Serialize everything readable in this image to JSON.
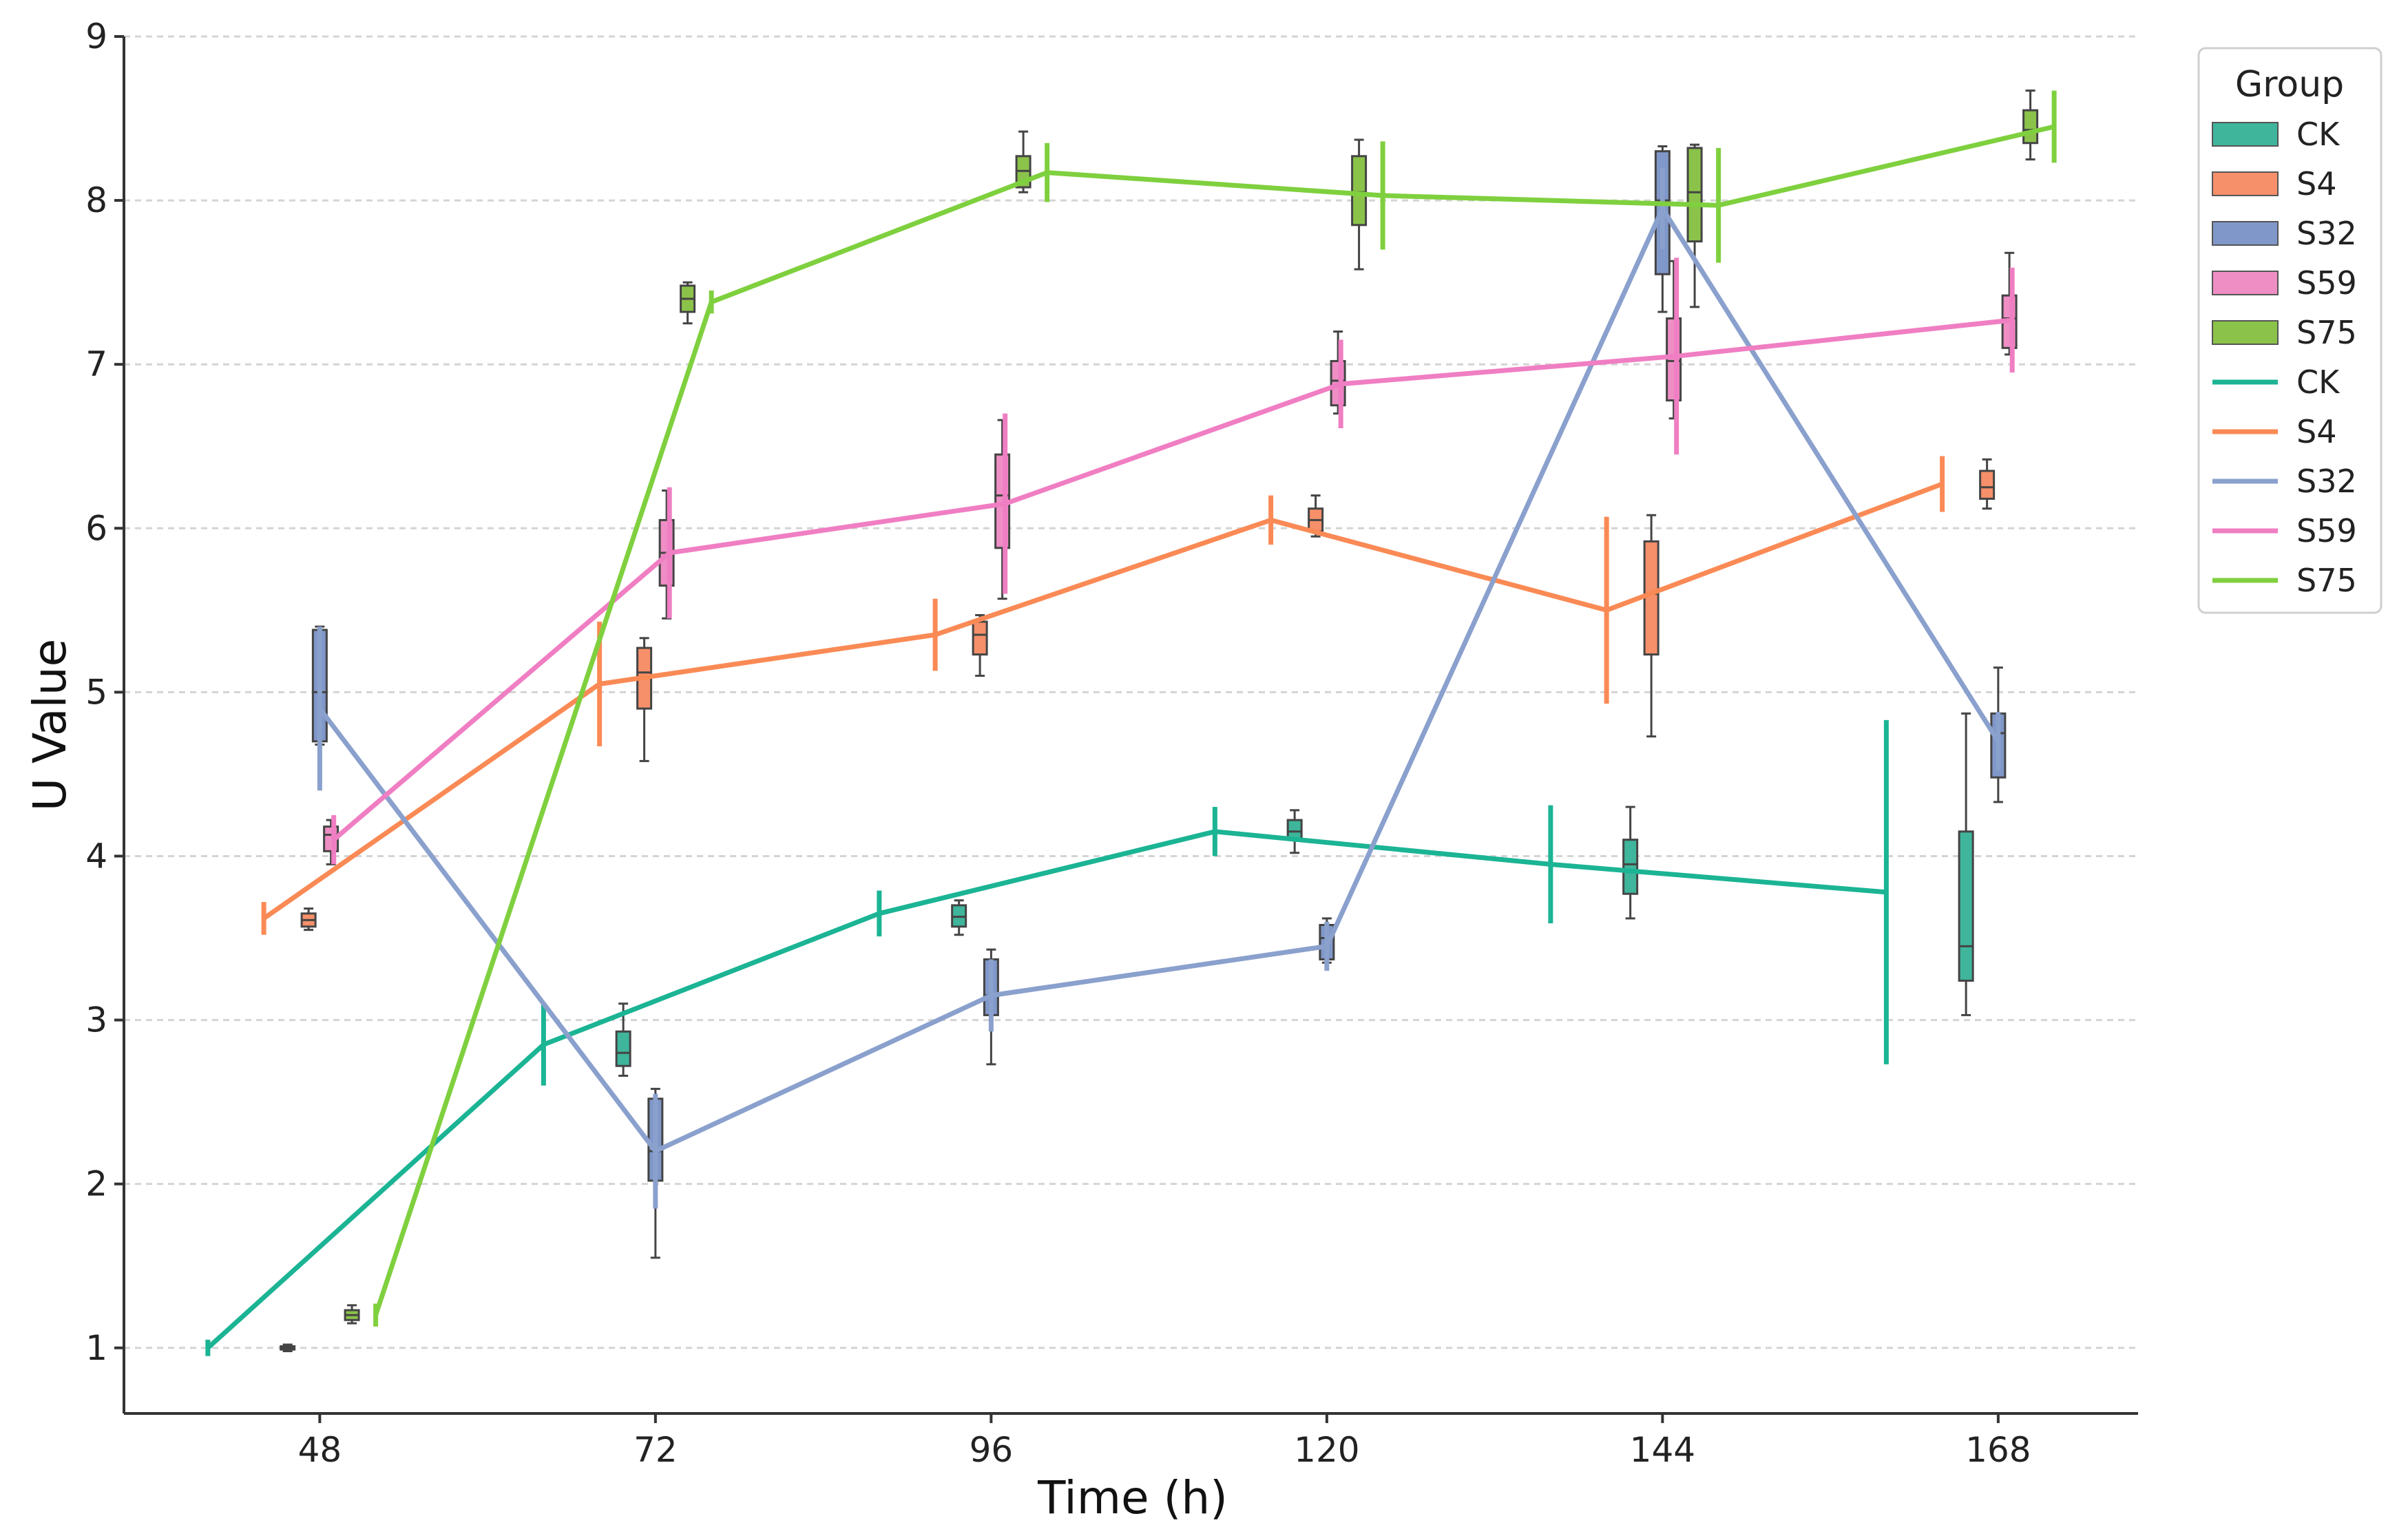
{
  "chart_data": {
    "type": "line",
    "subtype": "line-with-errorbars-and-boxplots",
    "title": "",
    "xlabel": "Time (h)",
    "ylabel": "U Value",
    "xlim": [
      34,
      178
    ],
    "ylim": [
      0.6,
      9.0
    ],
    "x_ticks": [
      48,
      72,
      96,
      120,
      144,
      168
    ],
    "y_ticks": [
      1,
      2,
      3,
      4,
      5,
      6,
      7,
      8,
      9
    ],
    "grid": "horizontal-dashed",
    "legend": {
      "title": "Group",
      "position": "top-right-outside",
      "box_entries": [
        "CK",
        "S4",
        "S32",
        "S59",
        "S75"
      ],
      "line_entries": [
        "CK",
        "S4",
        "S32",
        "S59",
        "S75"
      ]
    },
    "series": [
      {
        "name": "CK",
        "color": "#1bb494",
        "box_color": "#3fb59b",
        "line": [
          {
            "x": 40.0,
            "y": 1.0,
            "err": 0.05
          },
          {
            "x": 64.0,
            "y": 2.85,
            "err": 0.25
          },
          {
            "x": 88.0,
            "y": 3.65,
            "err": 0.14
          },
          {
            "x": 112.0,
            "y": 4.15,
            "err": 0.15
          },
          {
            "x": 136.0,
            "y": 3.95,
            "err": 0.36
          },
          {
            "x": 160.0,
            "y": 3.78,
            "err": 1.05
          }
        ],
        "boxes": [
          {
            "x": 45.7,
            "whislo": 0.98,
            "q1": 0.99,
            "med": 1.0,
            "q3": 1.01,
            "whishi": 1.02
          },
          {
            "x": 69.7,
            "whislo": 2.66,
            "q1": 2.72,
            "med": 2.8,
            "q3": 2.93,
            "whishi": 3.1
          },
          {
            "x": 93.7,
            "whislo": 3.52,
            "q1": 3.57,
            "med": 3.63,
            "q3": 3.7,
            "whishi": 3.73
          },
          {
            "x": 117.7,
            "whislo": 4.02,
            "q1": 4.1,
            "med": 4.15,
            "q3": 4.22,
            "whishi": 4.28
          },
          {
            "x": 141.7,
            "whislo": 3.62,
            "q1": 3.77,
            "med": 3.95,
            "q3": 4.1,
            "whishi": 4.3
          },
          {
            "x": 165.7,
            "whislo": 3.03,
            "q1": 3.24,
            "med": 3.45,
            "q3": 4.15,
            "whishi": 4.87
          }
        ]
      },
      {
        "name": "S4",
        "color": "#fa8a55",
        "box_color": "#f6906a",
        "line": [
          {
            "x": 44.0,
            "y": 3.62,
            "err": 0.1
          },
          {
            "x": 68.0,
            "y": 5.05,
            "err": 0.38
          },
          {
            "x": 92.0,
            "y": 5.35,
            "err": 0.22
          },
          {
            "x": 116.0,
            "y": 6.05,
            "err": 0.15
          },
          {
            "x": 140.0,
            "y": 5.5,
            "err": 0.57
          },
          {
            "x": 164.0,
            "y": 6.27,
            "err": 0.17
          }
        ],
        "boxes": [
          {
            "x": 47.2,
            "whislo": 3.55,
            "q1": 3.57,
            "med": 3.61,
            "q3": 3.65,
            "whishi": 3.68
          },
          {
            "x": 71.2,
            "whislo": 4.58,
            "q1": 4.9,
            "med": 5.12,
            "q3": 5.27,
            "whishi": 5.33
          },
          {
            "x": 95.2,
            "whislo": 5.1,
            "q1": 5.23,
            "med": 5.35,
            "q3": 5.43,
            "whishi": 5.47
          },
          {
            "x": 119.2,
            "whislo": 5.95,
            "q1": 5.98,
            "med": 6.05,
            "q3": 6.12,
            "whishi": 6.2
          },
          {
            "x": 143.2,
            "whislo": 4.73,
            "q1": 5.23,
            "med": 5.6,
            "q3": 5.92,
            "whishi": 6.08
          },
          {
            "x": 167.2,
            "whislo": 6.12,
            "q1": 6.18,
            "med": 6.25,
            "q3": 6.35,
            "whishi": 6.42
          }
        ]
      },
      {
        "name": "S32",
        "color": "#8aa0cd",
        "box_color": "#8097c9",
        "line": [
          {
            "x": 48.0,
            "y": 4.9,
            "err": 0.5
          },
          {
            "x": 72.0,
            "y": 2.2,
            "err": 0.35
          },
          {
            "x": 96.0,
            "y": 3.15,
            "err": 0.22
          },
          {
            "x": 120.0,
            "y": 3.45,
            "err": 0.15
          },
          {
            "x": 144.0,
            "y": 7.95,
            "err": 0.25
          },
          {
            "x": 168.0,
            "y": 4.7,
            "err": 0.18
          }
        ],
        "boxes": [
          {
            "x": 48.0,
            "whislo": 4.68,
            "q1": 4.7,
            "med": 5.0,
            "q3": 5.38,
            "whishi": 5.4
          },
          {
            "x": 72.0,
            "whislo": 1.55,
            "q1": 2.02,
            "med": 2.2,
            "q3": 2.52,
            "whishi": 2.58
          },
          {
            "x": 96.0,
            "whislo": 2.73,
            "q1": 3.03,
            "med": 3.15,
            "q3": 3.37,
            "whishi": 3.43
          },
          {
            "x": 120.0,
            "whislo": 3.35,
            "q1": 3.37,
            "med": 3.5,
            "q3": 3.58,
            "whishi": 3.62
          },
          {
            "x": 144.0,
            "whislo": 7.32,
            "q1": 7.55,
            "med": 8.0,
            "q3": 8.3,
            "whishi": 8.33
          },
          {
            "x": 168.0,
            "whislo": 4.33,
            "q1": 4.48,
            "med": 4.75,
            "q3": 4.87,
            "whishi": 5.15
          }
        ]
      },
      {
        "name": "S59",
        "color": "#f07ec3",
        "box_color": "#ee8ec5",
        "line": [
          {
            "x": 49.0,
            "y": 4.1,
            "err": 0.15
          },
          {
            "x": 73.0,
            "y": 5.85,
            "err": 0.4
          },
          {
            "x": 97.0,
            "y": 6.15,
            "err": 0.55
          },
          {
            "x": 121.0,
            "y": 6.88,
            "err": 0.27
          },
          {
            "x": 145.0,
            "y": 7.05,
            "err": 0.6
          },
          {
            "x": 169.0,
            "y": 7.27,
            "err": 0.32
          }
        ],
        "boxes": [
          {
            "x": 48.8,
            "whislo": 3.95,
            "q1": 4.03,
            "med": 4.13,
            "q3": 4.18,
            "whishi": 4.22
          },
          {
            "x": 72.8,
            "whislo": 5.45,
            "q1": 5.65,
            "med": 5.85,
            "q3": 6.05,
            "whishi": 6.23
          },
          {
            "x": 96.8,
            "whislo": 5.57,
            "q1": 5.88,
            "med": 6.2,
            "q3": 6.45,
            "whishi": 6.66
          },
          {
            "x": 120.8,
            "whislo": 6.7,
            "q1": 6.75,
            "med": 6.9,
            "q3": 7.02,
            "whishi": 7.2
          },
          {
            "x": 144.8,
            "whislo": 6.67,
            "q1": 6.78,
            "med": 7.02,
            "q3": 7.28,
            "whishi": 7.63
          },
          {
            "x": 168.8,
            "whislo": 7.06,
            "q1": 7.1,
            "med": 7.28,
            "q3": 7.42,
            "whishi": 7.68
          }
        ]
      },
      {
        "name": "S75",
        "color": "#7fd03e",
        "box_color": "#8bc34a",
        "line": [
          {
            "x": 52.0,
            "y": 1.2,
            "err": 0.07
          },
          {
            "x": 76.0,
            "y": 7.38,
            "err": 0.07
          },
          {
            "x": 100.0,
            "y": 8.17,
            "err": 0.18
          },
          {
            "x": 124.0,
            "y": 8.03,
            "err": 0.33
          },
          {
            "x": 148.0,
            "y": 7.97,
            "err": 0.35
          },
          {
            "x": 172.0,
            "y": 8.45,
            "err": 0.22
          }
        ],
        "boxes": [
          {
            "x": 50.3,
            "whislo": 1.15,
            "q1": 1.17,
            "med": 1.2,
            "q3": 1.23,
            "whishi": 1.26
          },
          {
            "x": 74.3,
            "whislo": 7.25,
            "q1": 7.32,
            "med": 7.4,
            "q3": 7.48,
            "whishi": 7.5
          },
          {
            "x": 98.3,
            "whislo": 8.05,
            "q1": 8.08,
            "med": 8.18,
            "q3": 8.27,
            "whishi": 8.42
          },
          {
            "x": 122.3,
            "whislo": 7.58,
            "q1": 7.85,
            "med": 8.05,
            "q3": 8.27,
            "whishi": 8.37
          },
          {
            "x": 146.3,
            "whislo": 7.35,
            "q1": 7.75,
            "med": 8.05,
            "q3": 8.32,
            "whishi": 8.34
          },
          {
            "x": 170.3,
            "whislo": 8.25,
            "q1": 8.35,
            "med": 8.43,
            "q3": 8.55,
            "whishi": 8.67
          }
        ]
      }
    ]
  }
}
